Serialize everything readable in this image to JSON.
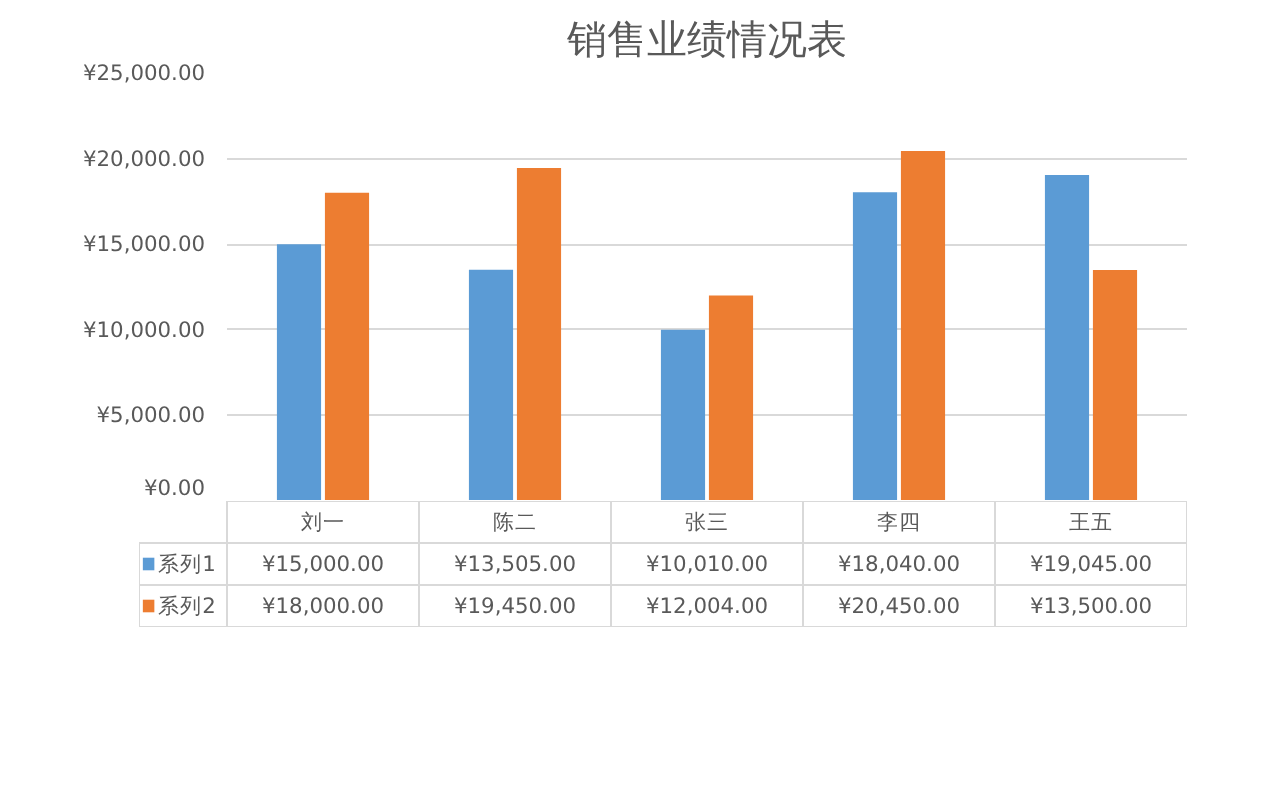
{
  "chart_data": {
    "type": "bar",
    "title": "销售业绩情况表",
    "categories": [
      "刘一",
      "陈二",
      "张三",
      "李四",
      "王五"
    ],
    "series": [
      {
        "name": "系列1",
        "color": "#5b9bd5",
        "values": [
          15000,
          13505,
          10010,
          18040,
          19045
        ],
        "value_labels": [
          "¥15,000.00",
          "¥13,505.00",
          "¥10,010.00",
          "¥18,040.00",
          "¥19,045.00"
        ]
      },
      {
        "name": "系列2",
        "color": "#ed7d31",
        "values": [
          18000,
          19450,
          12004,
          20450,
          13500
        ],
        "value_labels": [
          "¥18,000.00",
          "¥19,450.00",
          "¥12,004.00",
          "¥20,450.00",
          "¥13,500.00"
        ]
      }
    ],
    "ylim": [
      0,
      25000
    ],
    "yticks": [
      {
        "value": 0,
        "label": "¥0.00"
      },
      {
        "value": 5000,
        "label": "¥5,000.00"
      },
      {
        "value": 10000,
        "label": "¥10,000.00"
      },
      {
        "value": 15000,
        "label": "¥15,000.00"
      },
      {
        "value": 20000,
        "label": "¥20,000.00"
      },
      {
        "value": 25000,
        "label": "¥25,000.00"
      }
    ],
    "grid": "y",
    "legend": "bottom left"
  }
}
